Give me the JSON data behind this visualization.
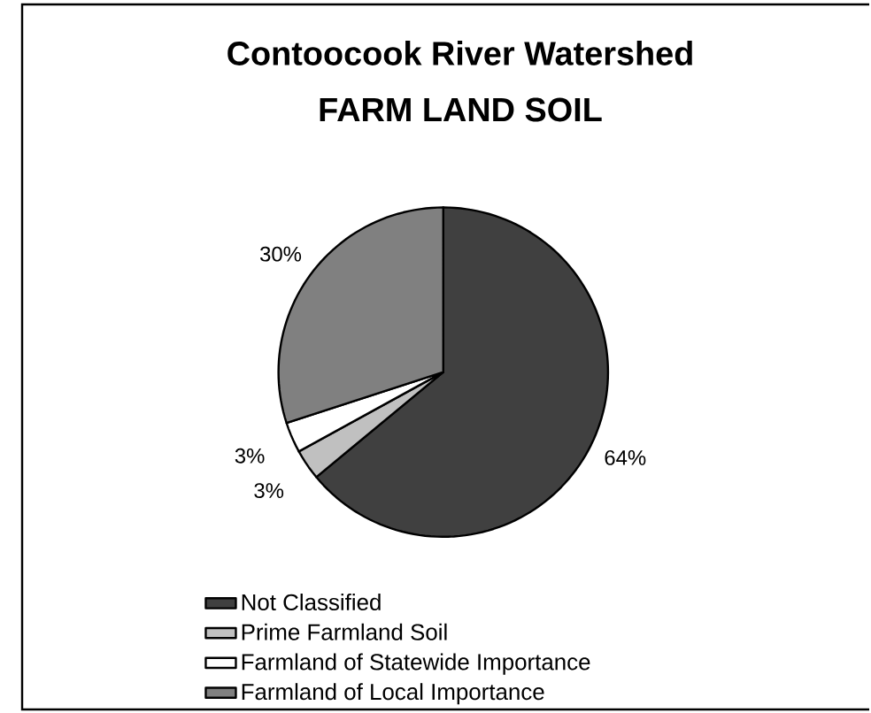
{
  "chart_data": {
    "type": "pie",
    "title": "Contoocook River Watershed",
    "subtitle": "FARM LAND SOIL",
    "categories": [
      "Not Classified",
      "Prime Farmland Soil",
      "Farmland of Statewide Importance",
      "Farmland of Local Importance"
    ],
    "values": [
      64,
      3,
      3,
      30
    ],
    "value_labels": [
      "64%",
      "3%",
      "3%",
      "30%"
    ],
    "colors": [
      "#404040",
      "#c0c0c0",
      "#ffffff",
      "#808080"
    ],
    "legend": "bottom"
  }
}
